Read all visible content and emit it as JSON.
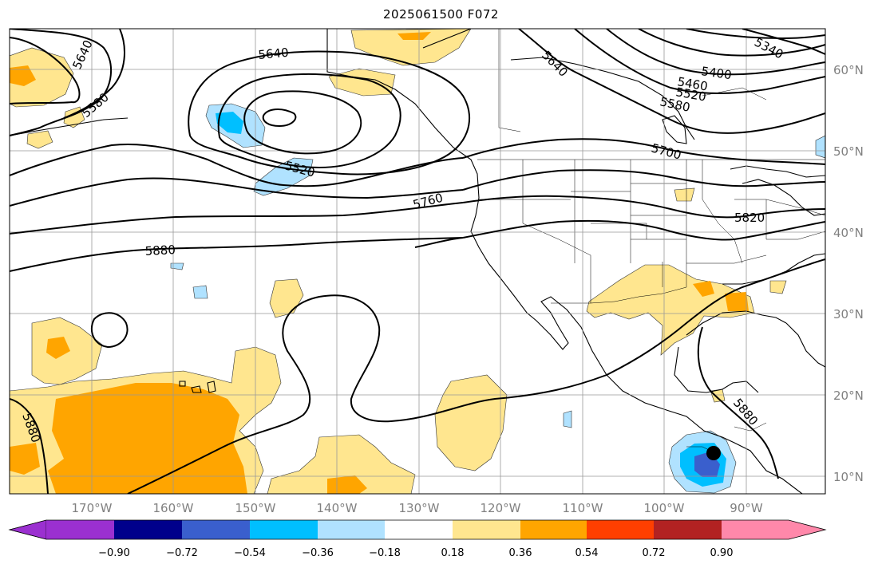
{
  "title": "2025061500 F072",
  "map": {
    "lon_labels": [
      "170°W",
      "160°W",
      "150°W",
      "140°W",
      "130°W",
      "120°W",
      "110°W",
      "100°W",
      "90°W"
    ],
    "lat_labels": [
      "60°N",
      "50°N",
      "40°N",
      "30°N",
      "20°N",
      "10°N"
    ],
    "contour_labels": [
      "5640",
      "5580",
      "5640",
      "5520",
      "5760",
      "5880",
      "5640",
      "5340",
      "5400",
      "5460",
      "5520",
      "5580",
      "5700",
      "5820",
      "5880",
      "5880"
    ]
  },
  "colorbar": {
    "ticks": [
      "−0.90",
      "−0.72",
      "−0.54",
      "−0.36",
      "−0.18",
      "0.18",
      "0.36",
      "0.54",
      "0.72",
      "0.90"
    ],
    "colors": {
      "extend_low": "#9b30d0",
      "lt_m090": "#9b30d0",
      "m090_m072": "#00008b",
      "m072_m054": "#3a5fcd",
      "m054_m036": "#00bfff",
      "m036_m018": "#b0e2ff",
      "m018_018": "#ffffff",
      "p018_036": "#ffe68f",
      "p036_054": "#ffa500",
      "p054_072": "#ff3f00",
      "p072_090": "#b22222",
      "gt_090": "#ff88aa"
    }
  }
}
